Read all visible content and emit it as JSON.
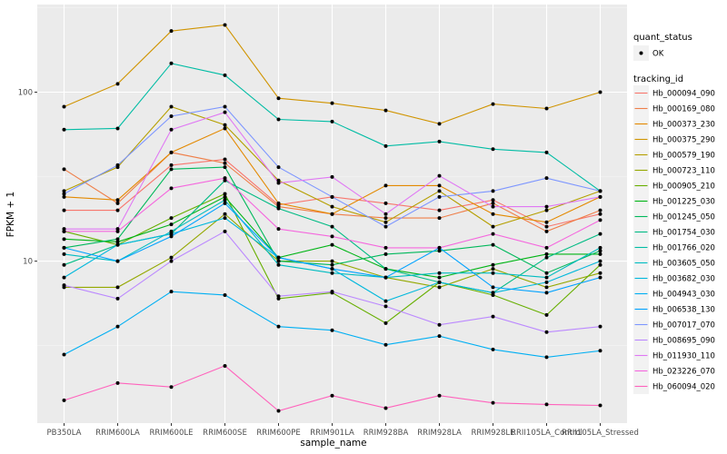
{
  "chart_data": {
    "type": "line",
    "xlabel": "sample_name",
    "ylabel": "FPKM + 1",
    "y_scale": "log10",
    "ylim": [
      1.1,
      330
    ],
    "y_ticks": [
      10,
      100
    ],
    "y_tick_labels": [
      "10",
      "100"
    ],
    "grid": true,
    "legend_placement": "right",
    "categories": [
      "PB350LA",
      "RRIM600LA",
      "RRIM600LE",
      "RRIM600SE",
      "RRIM600PE",
      "RRIM901LA",
      "RRIM928BA",
      "RRIM928LA",
      "RRIM928LE",
      "RRII105LA_Control",
      "RRII105LA_Stressed"
    ],
    "point_legend": {
      "title": "quant_status",
      "items": [
        "OK"
      ]
    },
    "line_legend_title": "tracking_id",
    "series": [
      {
        "name": "Hb_000094_090",
        "color": "#F8766D",
        "values": [
          20.0,
          20.0,
          37.0,
          40.0,
          21.5,
          24.0,
          22.0,
          20.0,
          23.0,
          16.0,
          19.0
        ]
      },
      {
        "name": "Hb_000169_080",
        "color": "#EF7F49",
        "values": [
          35.0,
          22.0,
          44.0,
          38.0,
          21.0,
          19.0,
          18.0,
          18.0,
          22.0,
          15.0,
          20.0
        ]
      },
      {
        "name": "Hb_000373_230",
        "color": "#E38900",
        "values": [
          24.0,
          23.0,
          44.0,
          61.0,
          22.0,
          19.0,
          28.0,
          28.0,
          19.0,
          17.0,
          24.0
        ]
      },
      {
        "name": "Hb_000375_290",
        "color": "#D09400",
        "values": [
          82.0,
          112.0,
          230.0,
          250.0,
          92.0,
          86.0,
          78.0,
          65.0,
          85.0,
          80.0,
          100.0
        ]
      },
      {
        "name": "Hb_000579_190",
        "color": "#B59F00",
        "values": [
          26.0,
          36.0,
          82.0,
          64.0,
          30.0,
          21.0,
          17.0,
          26.0,
          16.0,
          20.0,
          26.0
        ]
      },
      {
        "name": "Hb_000723_110",
        "color": "#94A800",
        "values": [
          7.0,
          7.0,
          10.5,
          19.0,
          10.0,
          10.0,
          8.0,
          7.0,
          9.0,
          7.0,
          8.5
        ]
      },
      {
        "name": "Hb_000905_210",
        "color": "#67AF00",
        "values": [
          15.0,
          12.5,
          18.0,
          25.0,
          6.0,
          6.5,
          4.3,
          7.5,
          6.3,
          4.8,
          9.5
        ]
      },
      {
        "name": "Hb_001225_030",
        "color": "#00B415",
        "values": [
          13.5,
          13.0,
          16.5,
          24.0,
          10.5,
          12.5,
          9.0,
          8.0,
          9.5,
          11.0,
          11.0
        ]
      },
      {
        "name": "Hb_001245_050",
        "color": "#00B85B",
        "values": [
          12.0,
          13.5,
          35.0,
          36.0,
          10.0,
          9.5,
          11.0,
          11.5,
          12.5,
          8.5,
          11.5
        ]
      },
      {
        "name": "Hb_001754_030",
        "color": "#00BB84",
        "values": [
          9.5,
          12.5,
          14.5,
          30.0,
          20.5,
          16.0,
          9.0,
          7.5,
          6.5,
          10.5,
          14.5
        ]
      },
      {
        "name": "Hb_001766_020",
        "color": "#00BCA4",
        "values": [
          60.0,
          61.0,
          148.0,
          126.0,
          69.0,
          67.0,
          48.0,
          51.0,
          46.0,
          44.0,
          26.0
        ]
      },
      {
        "name": "Hb_003605_050",
        "color": "#00BCC1",
        "values": [
          11.0,
          10.0,
          15.0,
          23.0,
          9.5,
          8.5,
          8.0,
          8.5,
          8.5,
          8.0,
          12.0
        ]
      },
      {
        "name": "Hb_003682_030",
        "color": "#00B8DC",
        "values": [
          8.0,
          12.5,
          14.5,
          18.0,
          10.5,
          9.0,
          5.8,
          7.5,
          6.5,
          7.5,
          10.0
        ]
      },
      {
        "name": "Hb_004943_030",
        "color": "#00AFF3",
        "values": [
          2.8,
          4.1,
          6.6,
          6.3,
          4.1,
          3.9,
          3.2,
          3.6,
          3.0,
          2.7,
          2.95
        ]
      },
      {
        "name": "Hb_006538_130",
        "color": "#00A2FF",
        "values": [
          12.0,
          10.0,
          14.0,
          22.0,
          10.5,
          9.0,
          8.0,
          12.0,
          7.0,
          6.5,
          8.0
        ]
      },
      {
        "name": "Hb_007017_070",
        "color": "#7D96FF",
        "values": [
          25.0,
          37.0,
          72.0,
          82.0,
          36.0,
          24.0,
          16.0,
          24.0,
          26.0,
          31.0,
          26.0
        ]
      },
      {
        "name": "Hb_008695_090",
        "color": "#BB88FF",
        "values": [
          7.2,
          6.0,
          10.0,
          15.0,
          6.2,
          6.6,
          5.4,
          4.2,
          4.7,
          3.8,
          4.1
        ]
      },
      {
        "name": "Hb_011930_110",
        "color": "#E077F4",
        "values": [
          15.5,
          15.5,
          60.0,
          76.0,
          29.0,
          31.5,
          19.0,
          32.0,
          21.0,
          21.0,
          24.0
        ]
      },
      {
        "name": "Hb_023226_070",
        "color": "#F567DE",
        "values": [
          15.0,
          15.0,
          27.0,
          31.0,
          15.5,
          14.0,
          12.0,
          12.0,
          14.5,
          12.0,
          17.5
        ]
      },
      {
        "name": "Hb_060094_020",
        "color": "#FF62BC",
        "values": [
          1.5,
          1.9,
          1.8,
          2.4,
          1.3,
          1.6,
          1.35,
          1.6,
          1.45,
          1.42,
          1.4
        ]
      }
    ]
  }
}
